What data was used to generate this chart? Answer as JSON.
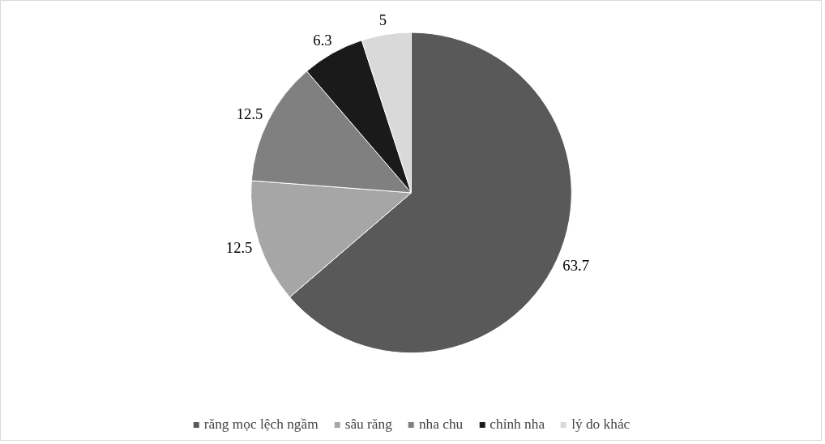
{
  "chart_data": {
    "type": "pie",
    "categories": [
      "răng mọc lệch ngầm",
      "sâu răng",
      "nha chu",
      "chỉnh nha",
      "lý do khác"
    ],
    "values": [
      63.7,
      12.5,
      12.5,
      6.3,
      5
    ],
    "colors": [
      "#595959",
      "#a6a6a6",
      "#808080",
      "#1a1a1a",
      "#d9d9d9"
    ],
    "data_labels": true,
    "legend": "bottom"
  }
}
